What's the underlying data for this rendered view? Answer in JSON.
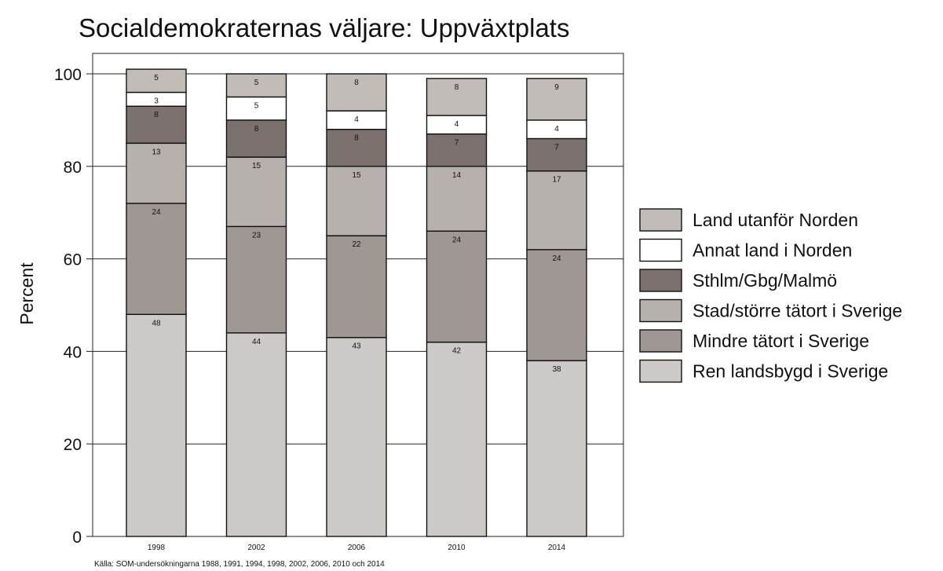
{
  "chart_data": {
    "type": "bar",
    "stacked": true,
    "title": "Socialdemokraternas väljare: Uppväxtplats",
    "xlabel": "",
    "ylabel": "Percent",
    "ylim": [
      0,
      100
    ],
    "yticks": [
      "0",
      "20",
      "40",
      "60",
      "80",
      "100"
    ],
    "grid": "horizontal",
    "legend_position": "right",
    "categories": [
      "1998",
      "2002",
      "2006",
      "2010",
      "2014"
    ],
    "series": [
      {
        "name": "Ren landsbygd i Sverige",
        "color": "#cdc9c6",
        "values": [
          48,
          44,
          43,
          42,
          38
        ]
      },
      {
        "name": "Mindre tätort i Sverige",
        "color": "#9f9793",
        "values": [
          24,
          23,
          22,
          24,
          24
        ]
      },
      {
        "name": "Stad/större tätort i Sverige",
        "color": "#b7b1ae",
        "values": [
          13,
          15,
          15,
          14,
          17
        ]
      },
      {
        "name": "Sthlm/Gbg/Malmö",
        "color": "#7b716e",
        "values": [
          8,
          8,
          8,
          7,
          7
        ]
      },
      {
        "name": "Annat land i Norden",
        "color": "#ffffff",
        "values": [
          3,
          5,
          4,
          4,
          4
        ]
      },
      {
        "name": "Land utanför Norden",
        "color": "#c2bcb9",
        "values": [
          5,
          5,
          8,
          8,
          9
        ]
      }
    ],
    "source": "Källa: SOM-undersökningarna 1988, 1991, 1994, 1998, 2002, 2006, 2010 och 2014"
  }
}
